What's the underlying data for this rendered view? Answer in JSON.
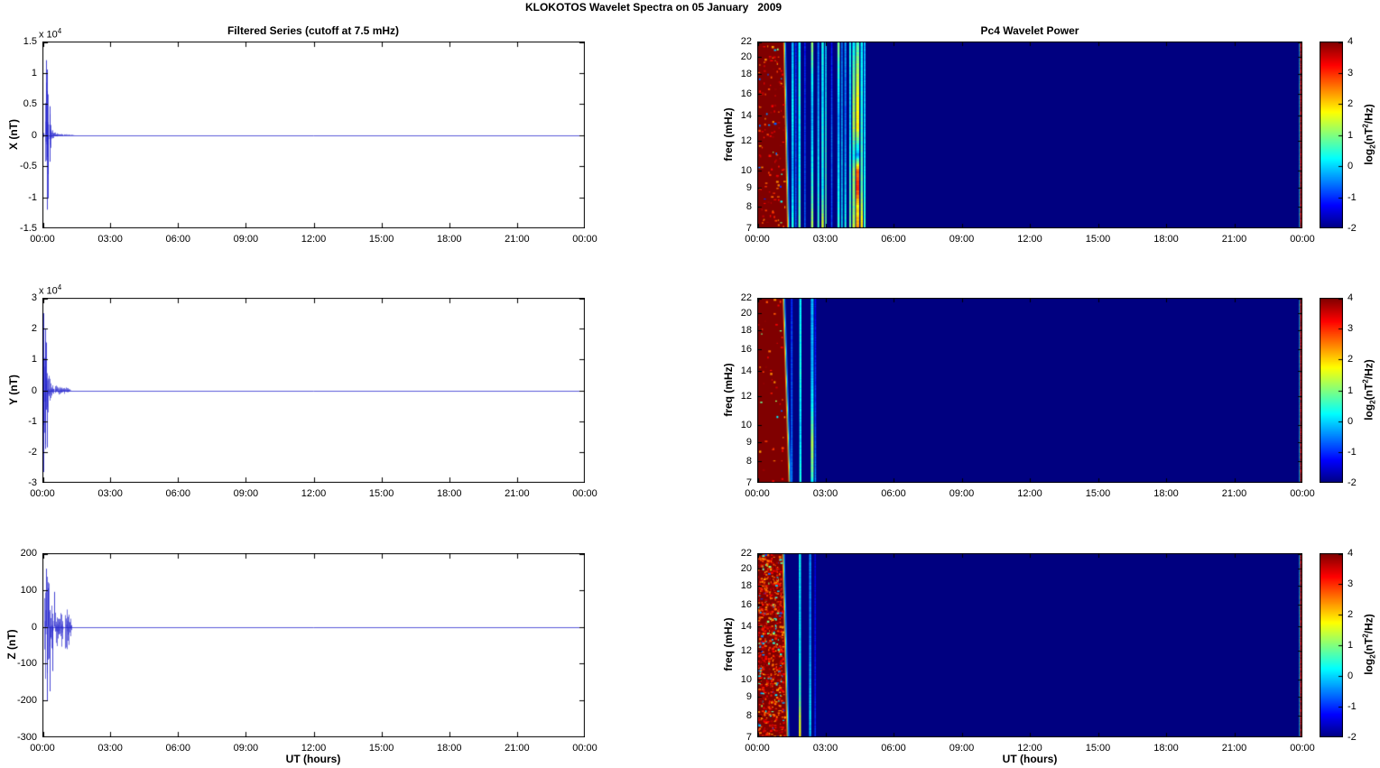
{
  "figure": {
    "title": "KLOKOTOS Wavelet Spectra on 05 January   2009",
    "background_color": "#ffffff"
  },
  "colorbar": {
    "colormap": "jet",
    "range_log2": [
      -2,
      4
    ],
    "tick_values": [
      4,
      3,
      2,
      1,
      0,
      -1,
      -2
    ],
    "tick_labels": [
      "4",
      "3",
      "2",
      "1",
      "0",
      "-1",
      "-2"
    ],
    "label_text": "log2(nT^2/Hz)",
    "label_parts": {
      "p1": "log",
      "s1": "2",
      "p2": "(nT",
      "s2": "2",
      "p3": "/Hz)"
    }
  },
  "chart_data": [
    {
      "id": "x-series",
      "type": "line",
      "title": "Filtered Series (cutoff at 7.5 mHz)",
      "ylabel": "X (nT)",
      "y_multiplier_base": "x 10",
      "y_multiplier_exp": "4",
      "xlabel": "",
      "x_ticks": [
        "00:00",
        "03:00",
        "06:00",
        "09:00",
        "12:00",
        "15:00",
        "18:00",
        "21:00",
        "00:00"
      ],
      "time_range_hours": [
        0,
        24
      ],
      "ylim": [
        -15000,
        15000
      ],
      "y_tick_values": [
        15000,
        10000,
        5000,
        0,
        -5000,
        -10000,
        -15000
      ],
      "y_tick_labels": [
        "1.5",
        "1",
        "0.5",
        "0",
        "-0.5",
        "-1",
        "-1.5"
      ],
      "line_color": "#2222cc",
      "baseline_value": 0,
      "burst": {
        "peak_pos": 12000,
        "peak_neg": -12000,
        "end_hours": 1.45,
        "envelope": [
          [
            0,
            0
          ],
          [
            0.05,
            0.05
          ],
          [
            0.1,
            0.45
          ],
          [
            0.17,
            1
          ],
          [
            0.22,
            0.75
          ],
          [
            0.28,
            0.4
          ],
          [
            0.33,
            0.25
          ],
          [
            0.4,
            0.12
          ],
          [
            0.5,
            0.06
          ],
          [
            0.6,
            0.025
          ],
          [
            0.8,
            0.012
          ],
          [
            1,
            0.01
          ],
          [
            1.2,
            0.008
          ],
          [
            1.35,
            0.004
          ],
          [
            1.45,
            0
          ]
        ],
        "spikes": [
          [
            0.17,
            12000
          ],
          [
            0.19,
            -12000
          ],
          [
            0.21,
            10500
          ],
          [
            0.23,
            -10200
          ],
          [
            0.3,
            4600
          ],
          [
            0.31,
            -4300
          ]
        ]
      }
    },
    {
      "id": "y-series",
      "type": "line",
      "title": "",
      "ylabel": "Y (nT)",
      "y_multiplier_base": "x 10",
      "y_multiplier_exp": "4",
      "xlabel": "",
      "x_ticks": [
        "00:00",
        "03:00",
        "06:00",
        "09:00",
        "12:00",
        "15:00",
        "18:00",
        "21:00",
        "00:00"
      ],
      "time_range_hours": [
        0,
        24
      ],
      "ylim": [
        -30000,
        30000
      ],
      "y_tick_values": [
        30000,
        20000,
        10000,
        0,
        -10000,
        -20000,
        -30000
      ],
      "y_tick_labels": [
        "3",
        "2",
        "1",
        "0",
        "-1",
        "-2",
        "-3"
      ],
      "line_color": "#2222cc",
      "baseline_value": 0,
      "burst": {
        "peak_pos": 25000,
        "peak_neg": -26500,
        "end_hours": 1.25,
        "envelope": [
          [
            0,
            0
          ],
          [
            0.03,
            0.3
          ],
          [
            0.06,
            1
          ],
          [
            0.12,
            0.72
          ],
          [
            0.18,
            0.5
          ],
          [
            0.25,
            0.3
          ],
          [
            0.32,
            0.16
          ],
          [
            0.4,
            0.08
          ],
          [
            0.5,
            0.05
          ],
          [
            0.58,
            0.07
          ],
          [
            0.66,
            0.04
          ],
          [
            0.76,
            0.06
          ],
          [
            0.86,
            0.03
          ],
          [
            0.94,
            0.05
          ],
          [
            1.05,
            0.04
          ],
          [
            1.18,
            0.02
          ],
          [
            1.25,
            0
          ]
        ],
        "spikes": [
          [
            0.05,
            -26500
          ],
          [
            0.055,
            25000
          ],
          [
            0.1,
            20000
          ],
          [
            0.12,
            -19000
          ],
          [
            0.17,
            15500
          ],
          [
            0.2,
            -18500
          ]
        ]
      }
    },
    {
      "id": "z-series",
      "type": "line",
      "title": "",
      "ylabel": "Z (nT)",
      "y_multiplier_base": "",
      "y_multiplier_exp": "",
      "xlabel": "UT (hours)",
      "x_ticks": [
        "00:00",
        "03:00",
        "06:00",
        "09:00",
        "12:00",
        "15:00",
        "18:00",
        "21:00",
        "00:00"
      ],
      "time_range_hours": [
        0,
        24
      ],
      "ylim": [
        -300,
        200
      ],
      "y_tick_values": [
        200,
        100,
        0,
        -100,
        -200,
        -300
      ],
      "y_tick_labels": [
        "200",
        "100",
        "0",
        "-100",
        "-200",
        "-300"
      ],
      "line_color": "#2222cc",
      "baseline_value": 0,
      "burst": {
        "peak_pos": 160,
        "peak_neg": -200,
        "end_hours": 1.3,
        "envelope": [
          [
            0,
            0
          ],
          [
            0.05,
            0.25
          ],
          [
            0.1,
            0.8
          ],
          [
            0.16,
            1
          ],
          [
            0.22,
            0.8
          ],
          [
            0.3,
            0.85
          ],
          [
            0.38,
            0.45
          ],
          [
            0.45,
            0.35
          ],
          [
            0.55,
            0.25
          ],
          [
            0.65,
            0.3
          ],
          [
            0.75,
            0.22
          ],
          [
            0.85,
            0.3
          ],
          [
            0.95,
            0.33
          ],
          [
            1.05,
            0.3
          ],
          [
            1.15,
            0.35
          ],
          [
            1.25,
            0.12
          ],
          [
            1.3,
            0
          ]
        ],
        "spikes": [
          [
            0.14,
            158
          ],
          [
            0.18,
            -200
          ],
          [
            0.25,
            105
          ],
          [
            0.3,
            -175
          ],
          [
            0.45,
            -120
          ],
          [
            0.5,
            95
          ]
        ]
      }
    },
    {
      "id": "x-spectrogram",
      "type": "heatmap",
      "title": "Pc4 Wavelet Power",
      "ylabel": "freq (mHz)",
      "xlabel": "",
      "x_ticks": [
        "00:00",
        "03:00",
        "06:00",
        "09:00",
        "12:00",
        "15:00",
        "18:00",
        "21:00",
        "00:00"
      ],
      "time_range_hours": [
        0,
        24
      ],
      "freq_ticks": [
        22,
        20,
        18,
        16,
        14,
        12,
        10,
        9,
        8,
        7
      ],
      "freq_range_mhz": [
        7,
        22
      ],
      "freq_scale": "log",
      "value_range_log2": [
        -2,
        4
      ],
      "background_value": -2,
      "saturated_band": {
        "t_end_top": 1.15,
        "t_end_bottom": 1.32,
        "value": 4,
        "mottle": 0.06
      },
      "right_edge_stripe": {
        "t_start": 23.9,
        "value": 3.6
      },
      "streaks": [
        {
          "t": 1.56,
          "w": 0.1,
          "profile": [
            [
              22,
              -0.2
            ],
            [
              14,
              0.2
            ],
            [
              10,
              -0.3
            ],
            [
              7,
              0.4
            ]
          ]
        },
        {
          "t": 1.7,
          "w": 0.06,
          "profile": [
            [
              22,
              -1
            ],
            [
              7,
              -0.6
            ]
          ]
        },
        {
          "t": 1.86,
          "w": 0.1,
          "profile": [
            [
              22,
              0.2
            ],
            [
              16,
              0.5
            ],
            [
              12,
              0.1
            ],
            [
              9,
              0.4
            ],
            [
              7,
              0.9
            ]
          ]
        },
        {
          "t": 2.1,
          "w": 0.06,
          "profile": [
            [
              22,
              -1.1
            ],
            [
              7,
              -0.7
            ]
          ]
        },
        {
          "t": 2.42,
          "w": 0.1,
          "profile": [
            [
              22,
              1.2
            ],
            [
              18,
              0.3
            ],
            [
              14,
              -0.2
            ],
            [
              10,
              0.3
            ],
            [
              8,
              0.8
            ],
            [
              7,
              1.4
            ]
          ]
        },
        {
          "t": 2.69,
          "w": 0.08,
          "profile": [
            [
              22,
              -0.6
            ],
            [
              14,
              -0.2
            ],
            [
              7,
              0.6
            ]
          ]
        },
        {
          "t": 2.88,
          "w": 0.1,
          "profile": [
            [
              22,
              0.4
            ],
            [
              16,
              0.1
            ],
            [
              12,
              0.4
            ],
            [
              9,
              0.2
            ],
            [
              7,
              1.6
            ]
          ]
        },
        {
          "t": 3.02,
          "w": 0.06,
          "profile": [
            [
              22,
              0
            ],
            [
              7,
              0.8
            ]
          ]
        },
        {
          "t": 3.28,
          "w": 0.06,
          "profile": [
            [
              22,
              -1.2
            ],
            [
              12,
              -0.6
            ],
            [
              7,
              -0.9
            ]
          ]
        },
        {
          "t": 3.58,
          "w": 0.1,
          "profile": [
            [
              22,
              1
            ],
            [
              18,
              0.4
            ],
            [
              14,
              -0.3
            ],
            [
              10,
              0
            ],
            [
              7,
              0.5
            ]
          ]
        },
        {
          "t": 3.73,
          "w": 0.06,
          "profile": [
            [
              22,
              -0.5
            ],
            [
              7,
              0.2
            ]
          ]
        },
        {
          "t": 3.88,
          "w": 0.08,
          "profile": [
            [
              22,
              -0.3
            ],
            [
              14,
              -0.6
            ],
            [
              10,
              -0.2
            ],
            [
              7,
              0.4
            ]
          ]
        },
        {
          "t": 4.09,
          "w": 0.08,
          "profile": [
            [
              22,
              0.3
            ],
            [
              14,
              0
            ],
            [
              7,
              0.9
            ]
          ]
        },
        {
          "t": 4.25,
          "w": 0.12,
          "profile": [
            [
              22,
              0.2
            ],
            [
              17,
              1
            ],
            [
              13,
              1.3
            ],
            [
              11,
              0.2
            ],
            [
              10,
              1.2
            ],
            [
              8,
              1
            ],
            [
              7,
              1.5
            ]
          ]
        },
        {
          "t": 4.42,
          "w": 0.14,
          "profile": [
            [
              22,
              0.6
            ],
            [
              17,
              1.5
            ],
            [
              13,
              1.8
            ],
            [
              11,
              -0.3
            ],
            [
              10,
              2.6
            ],
            [
              9,
              3
            ],
            [
              8,
              1.8
            ],
            [
              7,
              2.4
            ]
          ]
        },
        {
          "t": 4.6,
          "w": 0.1,
          "profile": [
            [
              22,
              0.1
            ],
            [
              14,
              0.4
            ],
            [
              9,
              0.8
            ],
            [
              7,
              2
            ]
          ]
        },
        {
          "t": 4.73,
          "w": 0.08,
          "profile": [
            [
              22,
              -0.2
            ],
            [
              12,
              0
            ],
            [
              7,
              0.6
            ]
          ]
        }
      ]
    },
    {
      "id": "y-spectrogram",
      "type": "heatmap",
      "title": "",
      "ylabel": "freq (mHz)",
      "xlabel": "",
      "x_ticks": [
        "00:00",
        "03:00",
        "06:00",
        "09:00",
        "12:00",
        "15:00",
        "18:00",
        "21:00",
        "00:00"
      ],
      "time_range_hours": [
        0,
        24
      ],
      "freq_ticks": [
        22,
        20,
        18,
        16,
        14,
        12,
        10,
        9,
        8,
        7
      ],
      "freq_range_mhz": [
        7,
        22
      ],
      "freq_scale": "log",
      "value_range_log2": [
        -2,
        4
      ],
      "background_value": -2,
      "saturated_band": {
        "t_end_top": 1.12,
        "t_end_bottom": 1.38,
        "value": 4,
        "mottle": 0.02
      },
      "right_edge_stripe": {
        "t_start": 23.9,
        "value": 3.6
      },
      "streaks": [
        {
          "t": 1.52,
          "w": 0.07,
          "profile": [
            [
              22,
              -1
            ],
            [
              7,
              -0.5
            ]
          ]
        },
        {
          "t": 1.9,
          "w": 0.09,
          "profile": [
            [
              22,
              0.2
            ],
            [
              14,
              0.3
            ],
            [
              10,
              0
            ],
            [
              7,
              0.4
            ]
          ]
        },
        {
          "t": 2.42,
          "w": 0.12,
          "profile": [
            [
              22,
              -0.2
            ],
            [
              14,
              -0.2
            ],
            [
              11,
              0.3
            ],
            [
              9,
              1.3
            ],
            [
              8,
              1
            ],
            [
              7.3,
              0.6
            ],
            [
              7,
              0.2
            ]
          ]
        },
        {
          "t": 2.56,
          "w": 0.06,
          "profile": [
            [
              22,
              -1.3
            ],
            [
              10,
              -0.8
            ],
            [
              7,
              -0.4
            ]
          ]
        }
      ]
    },
    {
      "id": "z-spectrogram",
      "type": "heatmap",
      "title": "",
      "ylabel": "freq (mHz)",
      "xlabel": "UT (hours)",
      "x_ticks": [
        "00:00",
        "03:00",
        "06:00",
        "09:00",
        "12:00",
        "15:00",
        "18:00",
        "21:00",
        "00:00"
      ],
      "time_range_hours": [
        0,
        24
      ],
      "freq_ticks": [
        22,
        20,
        18,
        16,
        14,
        12,
        10,
        9,
        8,
        7
      ],
      "freq_range_mhz": [
        7,
        22
      ],
      "freq_scale": "log",
      "value_range_log2": [
        -2,
        4
      ],
      "background_value": -2,
      "saturated_band": {
        "t_end_top": 1.1,
        "t_end_bottom": 1.3,
        "value": 4,
        "mottle": 0.35
      },
      "right_edge_stripe": {
        "t_start": 23.9,
        "value": 3.6
      },
      "streaks": [
        {
          "t": 1.88,
          "w": 0.09,
          "profile": [
            [
              22,
              0.3
            ],
            [
              16,
              0
            ],
            [
              12,
              0.2
            ],
            [
              9,
              0.6
            ],
            [
              8,
              1.4
            ],
            [
              7,
              1.8
            ]
          ]
        },
        {
          "t": 2.33,
          "w": 0.09,
          "profile": [
            [
              22,
              -0.4
            ],
            [
              14,
              -0.5
            ],
            [
              10,
              -0.2
            ],
            [
              8,
              0.1
            ],
            [
              7,
              -0.2
            ]
          ]
        },
        {
          "t": 2.55,
          "w": 0.05,
          "profile": [
            [
              22,
              -1.4
            ],
            [
              7,
              -1
            ]
          ]
        }
      ]
    }
  ]
}
